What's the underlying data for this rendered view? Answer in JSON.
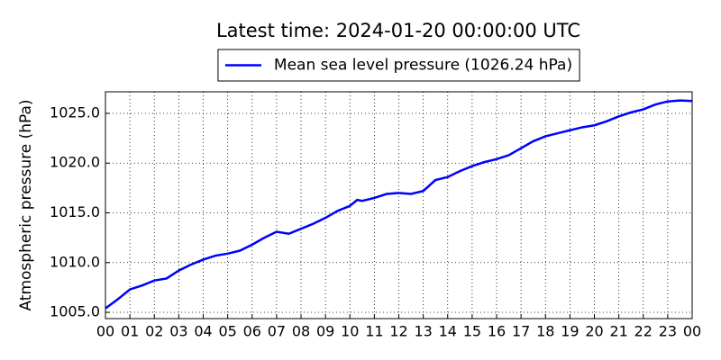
{
  "chart_data": {
    "type": "line",
    "title": "Latest time: 2024-01-20 00:00:00 UTC",
    "y_label": "Atmospheric pressure (hPa)",
    "series": [
      {
        "name": "Mean sea level pressure (1026.24 hPa)",
        "color": "#0000ff",
        "x": [
          0,
          0.5,
          1,
          1.5,
          2,
          2.5,
          3,
          3.5,
          4,
          4.5,
          5,
          5.5,
          6,
          6.5,
          7,
          7.5,
          8,
          8.5,
          9,
          9.5,
          10,
          10.3,
          10.5,
          11,
          11.5,
          12,
          12.5,
          13,
          13.5,
          14,
          14.5,
          15,
          15.5,
          16,
          16.5,
          17,
          17.5,
          18,
          18.5,
          19,
          19.5,
          20,
          20.5,
          21,
          21.5,
          22,
          22.5,
          23,
          23.5,
          24
        ],
        "values": [
          1005.4,
          1006.3,
          1007.3,
          1007.7,
          1008.2,
          1008.4,
          1009.2,
          1009.8,
          1010.3,
          1010.7,
          1010.9,
          1011.2,
          1011.8,
          1012.5,
          1013.1,
          1012.9,
          1013.4,
          1013.9,
          1014.5,
          1015.2,
          1015.7,
          1016.3,
          1016.2,
          1016.5,
          1016.9,
          1017.0,
          1016.9,
          1017.2,
          1018.3,
          1018.6,
          1019.2,
          1019.7,
          1020.1,
          1020.4,
          1020.8,
          1021.5,
          1022.2,
          1022.7,
          1023.0,
          1023.3,
          1023.6,
          1023.8,
          1024.2,
          1024.7,
          1025.1,
          1025.4,
          1025.9,
          1026.2,
          1026.3,
          1026.24
        ]
      }
    ],
    "xlim": [
      0,
      24
    ],
    "xticks": [
      {
        "value": 0,
        "label": "00"
      },
      {
        "value": 1,
        "label": "01"
      },
      {
        "value": 2,
        "label": "02"
      },
      {
        "value": 3,
        "label": "03"
      },
      {
        "value": 4,
        "label": "04"
      },
      {
        "value": 5,
        "label": "05"
      },
      {
        "value": 6,
        "label": "06"
      },
      {
        "value": 7,
        "label": "07"
      },
      {
        "value": 8,
        "label": "08"
      },
      {
        "value": 9,
        "label": "09"
      },
      {
        "value": 10,
        "label": "10"
      },
      {
        "value": 11,
        "label": "11"
      },
      {
        "value": 12,
        "label": "12"
      },
      {
        "value": 13,
        "label": "13"
      },
      {
        "value": 14,
        "label": "14"
      },
      {
        "value": 15,
        "label": "15"
      },
      {
        "value": 16,
        "label": "16"
      },
      {
        "value": 17,
        "label": "17"
      },
      {
        "value": 18,
        "label": "18"
      },
      {
        "value": 19,
        "label": "19"
      },
      {
        "value": 20,
        "label": "20"
      },
      {
        "value": 21,
        "label": "21"
      },
      {
        "value": 22,
        "label": "22"
      },
      {
        "value": 23,
        "label": "23"
      },
      {
        "value": 24,
        "label": "00"
      }
    ],
    "ylim": [
      1004.37,
      1027.17
    ],
    "yticks": [
      {
        "value": 1005,
        "label": "1005.0"
      },
      {
        "value": 1010,
        "label": "1010.0"
      },
      {
        "value": 1015,
        "label": "1015.0"
      },
      {
        "value": 1020,
        "label": "1020.0"
      },
      {
        "value": 1025,
        "label": "1025.0"
      }
    ],
    "grid": true,
    "legend": "upper center"
  }
}
